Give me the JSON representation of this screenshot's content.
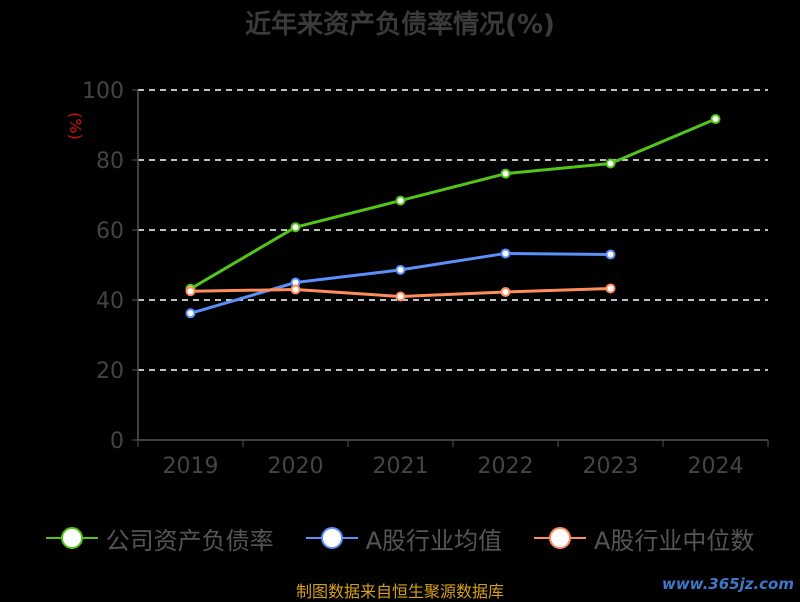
{
  "title": "近年来资产负债率情况(%)",
  "source": "制图数据来自恒生聚源数据库",
  "watermark": "www.365jz.com",
  "chart_data": {
    "type": "line",
    "unit_label": "(%)",
    "categories": [
      "2019",
      "2020",
      "2021",
      "2022",
      "2023",
      "2024"
    ],
    "ylim": [
      0,
      100
    ],
    "yticks": [
      0,
      20,
      40,
      60,
      80,
      100
    ],
    "grid": true,
    "legend_position": "bottom",
    "series": [
      {
        "name": "公司资产负债率",
        "color": "#52c41a",
        "values": [
          43.2,
          60.8,
          68.4,
          76.1,
          79.0,
          91.7
        ]
      },
      {
        "name": "A股行业均值",
        "color": "#5b8ff9",
        "values": [
          36.2,
          45.0,
          48.6,
          53.3,
          53.0,
          null
        ]
      },
      {
        "name": "A股行业中位数",
        "color": "#ff8c5a",
        "values": [
          42.5,
          43.0,
          41.0,
          42.3,
          43.3,
          null
        ]
      }
    ]
  }
}
